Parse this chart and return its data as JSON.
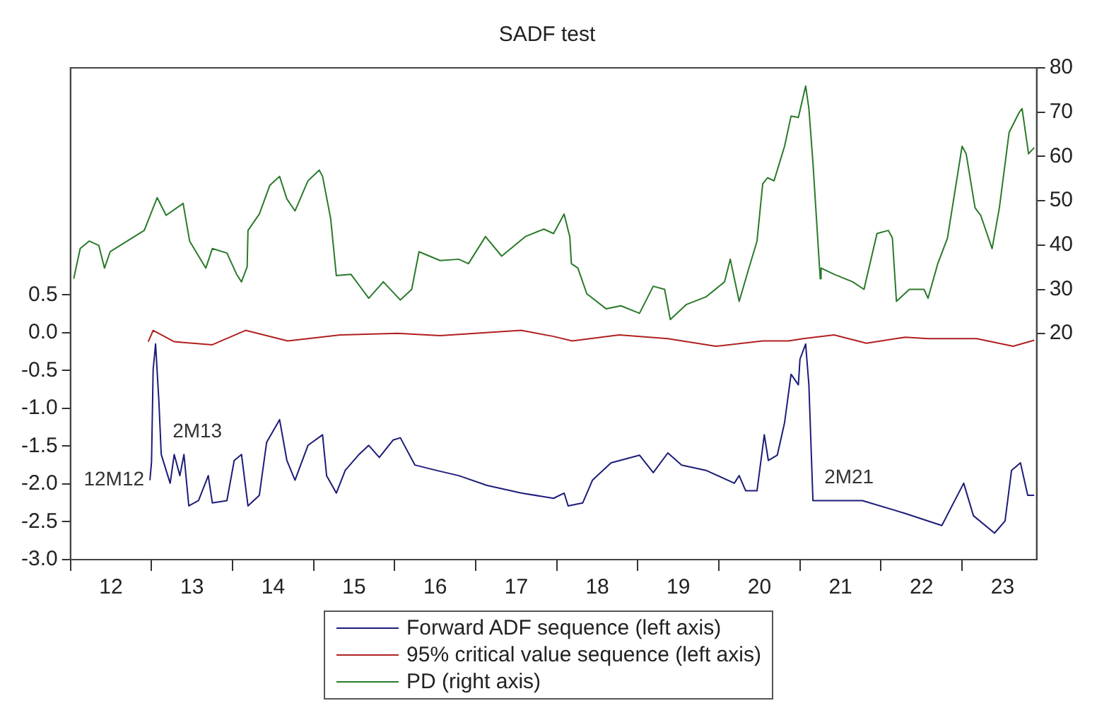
{
  "chart_data": {
    "type": "line",
    "title": "SADF test",
    "xlim": [
      11.5,
      23.42
    ],
    "xticks": [
      {
        "value": 11.5,
        "label": null
      },
      12,
      {
        "value": 12.5,
        "label": null
      },
      13,
      {
        "value": 13.5,
        "label": null
      },
      14,
      {
        "value": 14.5,
        "label": null
      },
      15,
      {
        "value": 15.5,
        "label": null
      },
      16,
      {
        "value": 16.5,
        "label": null
      },
      17,
      {
        "value": 17.5,
        "label": null
      },
      18,
      {
        "value": 18.5,
        "label": null
      },
      19,
      {
        "value": 19.5,
        "label": null
      },
      20,
      {
        "value": 20.5,
        "label": null
      },
      21,
      {
        "value": 21.5,
        "label": null
      },
      22,
      {
        "value": 22.5,
        "label": null
      },
      23
    ],
    "ylim": [
      -3,
      3.5
    ],
    "yticks": [
      {
        "value": -3,
        "label": "-3.0"
      },
      -2.5,
      {
        "value": -2,
        "label": "-2.0"
      },
      -1.5,
      {
        "value": -1,
        "label": "-1.0"
      },
      -0.5,
      {
        "value": 0,
        "label": "0.0"
      },
      0.5
    ],
    "y2lim": [
      -31,
      80
    ],
    "y2ticks": [
      20,
      30,
      40,
      50,
      60,
      70,
      80
    ],
    "grid": false,
    "legend": "bottom",
    "series": [
      {
        "name": "Forward ADF sequence (left axis)",
        "color": "#1c1c78",
        "axis": "y",
        "x": [
          12.48,
          12.5,
          12.52,
          12.55,
          12.59,
          12.62,
          12.68,
          12.73,
          12.78,
          12.85,
          12.9,
          12.96,
          13.08,
          13.2,
          13.25,
          13.43,
          13.52,
          13.61,
          13.69,
          13.83,
          13.92,
          14.08,
          14.17,
          14.27,
          14.43,
          14.61,
          14.66,
          14.78,
          14.89,
          15.06,
          15.18,
          15.31,
          15.48,
          15.57,
          15.75,
          16.01,
          16.29,
          16.64,
          17.06,
          17.46,
          17.59,
          17.64,
          17.82,
          17.94,
          18.17,
          18.52,
          18.69,
          18.87,
          19.04,
          19.34,
          19.69,
          19.75,
          19.83,
          19.97,
          20.06,
          20.11,
          20.22,
          20.31,
          20.39,
          20.48,
          20.5,
          20.57,
          20.61,
          20.66,
          20.85,
          21.27,
          21.8,
          22.25,
          22.52,
          22.64,
          22.9,
          23.03,
          23.11,
          23.22,
          23.31,
          23.39
        ],
        "values": [
          -1.95,
          -1.71,
          -0.49,
          -0.15,
          -0.89,
          -1.61,
          -1.82,
          -1.99,
          -1.61,
          -1.89,
          -1.61,
          -2.29,
          -2.22,
          -1.89,
          -2.25,
          -2.22,
          -1.69,
          -1.61,
          -2.29,
          -2.15,
          -1.45,
          -1.15,
          -1.69,
          -1.95,
          -1.49,
          -1.35,
          -1.89,
          -2.12,
          -1.82,
          -1.61,
          -1.49,
          -1.65,
          -1.42,
          -1.39,
          -1.75,
          -1.82,
          -1.89,
          -2.02,
          -2.12,
          -2.19,
          -2.12,
          -2.29,
          -2.25,
          -1.95,
          -1.72,
          -1.62,
          -1.85,
          -1.59,
          -1.75,
          -1.82,
          -1.99,
          -1.89,
          -2.09,
          -2.09,
          -1.35,
          -1.69,
          -1.62,
          -1.19,
          -0.55,
          -0.69,
          -0.35,
          -0.15,
          -0.69,
          -2.22,
          -2.22,
          -2.22,
          -2.39,
          -2.55,
          -1.99,
          -2.42,
          -2.65,
          -2.49,
          -1.82,
          -1.72,
          -2.15,
          -2.15
        ]
      },
      {
        "name": "95% critical value sequence (left axis)",
        "color": "#b02020",
        "axis": "y",
        "x": [
          12.46,
          12.52,
          12.78,
          13.25,
          13.66,
          14.18,
          14.83,
          15.54,
          16.06,
          17.06,
          17.46,
          17.69,
          18.27,
          18.87,
          19.46,
          20.04,
          20.36,
          20.54,
          20.92,
          21.32,
          21.8,
          22.08,
          22.68,
          23.13,
          23.39
        ],
        "values": [
          -0.12,
          0.03,
          -0.12,
          -0.16,
          0.03,
          -0.11,
          -0.03,
          -0.01,
          -0.04,
          0.03,
          -0.05,
          -0.11,
          -0.03,
          -0.08,
          -0.18,
          -0.11,
          -0.11,
          -0.08,
          -0.03,
          -0.14,
          -0.06,
          -0.08,
          -0.08,
          -0.18,
          -0.1
        ]
      },
      {
        "name": "PD (right axis)",
        "color": "#2a7a2a",
        "axis": "y2",
        "x": [
          11.54,
          11.62,
          11.73,
          11.85,
          11.92,
          11.99,
          12.2,
          12.41,
          12.57,
          12.68,
          12.89,
          12.97,
          13.17,
          13.25,
          13.43,
          13.55,
          13.61,
          13.68,
          13.69,
          13.83,
          13.96,
          14.08,
          14.17,
          14.27,
          14.43,
          14.57,
          14.61,
          14.71,
          14.78,
          14.96,
          15.18,
          15.36,
          15.57,
          15.71,
          15.8,
          16.06,
          16.29,
          16.41,
          16.62,
          16.82,
          17.11,
          17.34,
          17.46,
          17.59,
          17.66,
          17.68,
          17.76,
          17.87,
          18.11,
          18.29,
          18.52,
          18.69,
          18.83,
          18.9,
          19.1,
          19.34,
          19.57,
          19.64,
          19.75,
          19.87,
          19.97,
          20.04,
          20.1,
          20.18,
          20.31,
          20.39,
          20.48,
          20.57,
          20.61,
          20.66,
          20.75,
          20.76,
          20.92,
          21.15,
          21.29,
          21.45,
          21.59,
          21.64,
          21.69,
          21.85,
          22.03,
          22.08,
          22.2,
          22.32,
          22.5,
          22.55,
          22.66,
          22.73,
          22.87,
          22.96,
          23.08,
          23.2,
          23.24,
          23.32,
          23.39
        ],
        "values": [
          32.4,
          39.2,
          40.9,
          39.9,
          34.8,
          38.5,
          40.9,
          43.3,
          50.7,
          46.7,
          49.4,
          40.9,
          34.8,
          39.2,
          38.2,
          33.4,
          31.7,
          35.1,
          43.3,
          47.0,
          53.5,
          55.5,
          50.4,
          47.7,
          54.5,
          56.9,
          55.5,
          46.0,
          33.1,
          33.4,
          28.0,
          31.7,
          27.6,
          30.0,
          38.5,
          36.5,
          36.8,
          35.8,
          41.9,
          37.5,
          41.9,
          43.6,
          42.6,
          47.0,
          41.9,
          35.8,
          34.8,
          29.0,
          25.6,
          26.3,
          24.6,
          30.7,
          30.0,
          23.2,
          26.6,
          28.3,
          31.7,
          36.8,
          27.3,
          34.8,
          40.9,
          53.8,
          55.2,
          54.5,
          62.3,
          69.1,
          68.8,
          75.9,
          70.8,
          58.6,
          32.4,
          34.8,
          33.4,
          31.7,
          30.0,
          42.6,
          43.3,
          41.6,
          27.3,
          30.0,
          30.0,
          28.0,
          35.8,
          41.6,
          62.3,
          60.6,
          48.4,
          46.7,
          39.2,
          48.4,
          65.4,
          69.8,
          70.8,
          60.6,
          62.0
        ]
      }
    ],
    "annotations": [
      {
        "text": "12M12",
        "x": 12.48,
        "y": -1.95
      },
      {
        "text": "2M13",
        "x": 12.62,
        "y": -1.61
      },
      {
        "text": "2M21",
        "x": 20.66,
        "y": -2.22
      }
    ]
  }
}
